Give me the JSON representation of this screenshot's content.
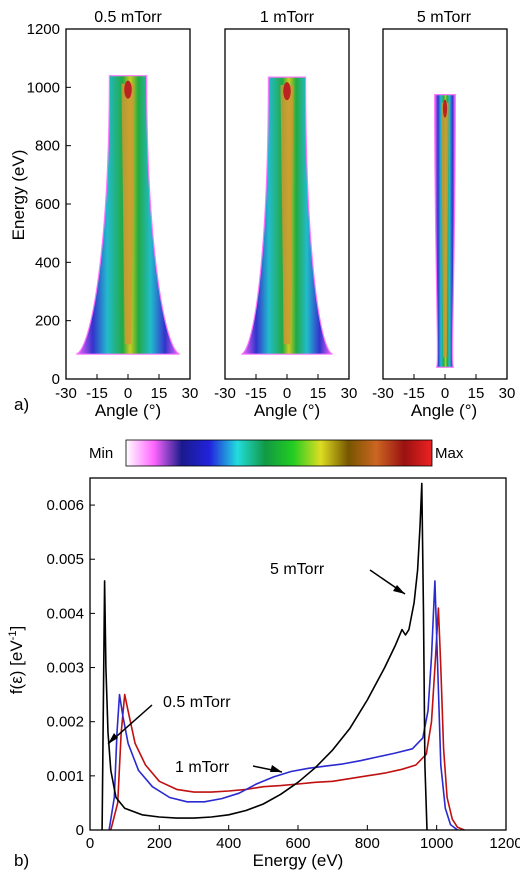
{
  "panel_a": {
    "letter": "a)",
    "ylabel": "Energy (eV)",
    "y_ticks": [
      "0",
      "200",
      "400",
      "600",
      "800",
      "1000",
      "1200"
    ],
    "x_ticks": [
      "-30",
      "-15",
      "0",
      "15",
      "30"
    ],
    "xlabel": "Angle (°)",
    "panels": [
      {
        "title": "0.5 mTorr",
        "emin": 85,
        "emax": 1040,
        "base_halfwidth": 25,
        "top_halfwidth": 9
      },
      {
        "title": "1 mTorr",
        "emin": 85,
        "emax": 1035,
        "base_halfwidth": 22,
        "top_halfwidth": 9
      },
      {
        "title": "5 mTorr",
        "emin": 40,
        "emax": 975,
        "base_halfwidth": 4,
        "top_halfwidth": 5
      }
    ]
  },
  "colorbar": {
    "min_label": "Min",
    "max_label": "Max",
    "colors": [
      "#ffffff",
      "#ff66ff",
      "#1a1a8c",
      "#2222dd",
      "#22dddd",
      "#119944",
      "#22cc22",
      "#dddd22",
      "#775500",
      "#cc6622",
      "#991111",
      "#ee2222"
    ]
  },
  "panel_b": {
    "letter": "b)",
    "ylabel": "f(ε) [eV⁻¹]",
    "ylabel_main": "f(ε) [eV",
    "ylabel_sup": "-1",
    "ylabel_end": "]",
    "xlabel": "Energy (eV)",
    "x_ticks": [
      "0",
      "200",
      "400",
      "600",
      "800",
      "1000",
      "1200"
    ],
    "y_ticks": [
      "0",
      "0.001",
      "0.002",
      "0.003",
      "0.004",
      "0.005",
      "0.006"
    ],
    "annotations": {
      "a05": "0.5 mTorr",
      "a1": "1 mTorr",
      "a5": "5 mTorr"
    }
  },
  "chart_data": [
    {
      "type": "heatmap",
      "title": "0.5 mTorr",
      "xlabel": "Angle (°)",
      "ylabel": "Energy (eV)",
      "xlim": [
        -30,
        30
      ],
      "ylim": [
        0,
        1200
      ],
      "x_ticks": [
        -30,
        -15,
        0,
        15,
        30
      ],
      "y_ticks": [
        0,
        200,
        400,
        600,
        800,
        1000,
        1200
      ],
      "energy_range": [
        85,
        1040
      ],
      "angular_halfwidth_at_min_energy": 25,
      "angular_halfwidth_at_max_energy": 9,
      "colorscale": [
        "Min",
        "Max"
      ]
    },
    {
      "type": "heatmap",
      "title": "1 mTorr",
      "xlabel": "Angle (°)",
      "xlim": [
        -30,
        30
      ],
      "ylim": [
        0,
        1200
      ],
      "x_ticks": [
        -30,
        -15,
        0,
        15,
        30
      ],
      "energy_range": [
        85,
        1035
      ],
      "angular_halfwidth_at_min_energy": 22,
      "angular_halfwidth_at_max_energy": 9,
      "colorscale": [
        "Min",
        "Max"
      ]
    },
    {
      "type": "heatmap",
      "title": "5 mTorr",
      "xlabel": "Angle (°)",
      "xlim": [
        -30,
        30
      ],
      "ylim": [
        0,
        1200
      ],
      "x_ticks": [
        -30,
        -15,
        0,
        15,
        30
      ],
      "energy_range": [
        40,
        975
      ],
      "angular_halfwidth_at_min_energy": 4,
      "angular_halfwidth_at_max_energy": 5,
      "colorscale": [
        "Min",
        "Max"
      ]
    },
    {
      "type": "line",
      "xlabel": "Energy (eV)",
      "ylabel": "f(ε) [eV⁻¹]",
      "xlim": [
        0,
        1200
      ],
      "ylim": [
        0,
        0.0065
      ],
      "x_ticks": [
        0,
        200,
        400,
        600,
        800,
        1000,
        1200
      ],
      "y_ticks": [
        0,
        0.001,
        0.002,
        0.003,
        0.004,
        0.005,
        0.006
      ],
      "series": [
        {
          "name": "0.5 mTorr",
          "color": "#c01010",
          "points": [
            [
              60,
              0
            ],
            [
              80,
              0.0005
            ],
            [
              90,
              0.0018
            ],
            [
              100,
              0.0025
            ],
            [
              110,
              0.0022
            ],
            [
              130,
              0.0016
            ],
            [
              160,
              0.0012
            ],
            [
              200,
              0.0009
            ],
            [
              250,
              0.00075
            ],
            [
              300,
              0.0007
            ],
            [
              350,
              0.0007
            ],
            [
              400,
              0.00072
            ],
            [
              450,
              0.00075
            ],
            [
              500,
              0.0008
            ],
            [
              550,
              0.00082
            ],
            [
              600,
              0.00085
            ],
            [
              650,
              0.00088
            ],
            [
              700,
              0.0009
            ],
            [
              750,
              0.00095
            ],
            [
              800,
              0.001
            ],
            [
              850,
              0.00105
            ],
            [
              900,
              0.00112
            ],
            [
              940,
              0.0012
            ],
            [
              970,
              0.0014
            ],
            [
              985,
              0.002
            ],
            [
              995,
              0.003
            ],
            [
              1005,
              0.0041
            ],
            [
              1012,
              0.003
            ],
            [
              1020,
              0.0015
            ],
            [
              1030,
              0.0006
            ],
            [
              1045,
              0.0002
            ],
            [
              1060,
              5e-05
            ],
            [
              1080,
              0
            ]
          ]
        },
        {
          "name": "1 mTorr",
          "color": "#2a2ad0",
          "points": [
            [
              55,
              0
            ],
            [
              70,
              0.0006
            ],
            [
              78,
              0.0018
            ],
            [
              85,
              0.0025
            ],
            [
              95,
              0.0021
            ],
            [
              110,
              0.0016
            ],
            [
              140,
              0.0011
            ],
            [
              180,
              0.0008
            ],
            [
              230,
              0.0006
            ],
            [
              280,
              0.00052
            ],
            [
              330,
              0.00052
            ],
            [
              380,
              0.00058
            ],
            [
              430,
              0.00068
            ],
            [
              480,
              0.00085
            ],
            [
              530,
              0.00098
            ],
            [
              580,
              0.00108
            ],
            [
              630,
              0.00114
            ],
            [
              680,
              0.00118
            ],
            [
              730,
              0.00122
            ],
            [
              780,
              0.00128
            ],
            [
              830,
              0.00135
            ],
            [
              880,
              0.00142
            ],
            [
              930,
              0.0015
            ],
            [
              960,
              0.0017
            ],
            [
              975,
              0.0022
            ],
            [
              985,
              0.0032
            ],
            [
              995,
              0.0046
            ],
            [
              1003,
              0.003
            ],
            [
              1012,
              0.0012
            ],
            [
              1025,
              0.0004
            ],
            [
              1040,
              0.0001
            ],
            [
              1060,
              0
            ]
          ]
        },
        {
          "name": "5 mTorr",
          "color": "#000000",
          "points": [
            [
              35,
              0
            ],
            [
              42,
              0.0046
            ],
            [
              46,
              0.003
            ],
            [
              52,
              0.0018
            ],
            [
              60,
              0.0011
            ],
            [
              75,
              0.0006
            ],
            [
              100,
              0.0004
            ],
            [
              150,
              0.00028
            ],
            [
              200,
              0.00024
            ],
            [
              250,
              0.00022
            ],
            [
              300,
              0.00022
            ],
            [
              350,
              0.00024
            ],
            [
              400,
              0.00028
            ],
            [
              450,
              0.00036
            ],
            [
              500,
              0.00048
            ],
            [
              550,
              0.00066
            ],
            [
              600,
              0.00088
            ],
            [
              650,
              0.00115
            ],
            [
              700,
              0.00148
            ],
            [
              750,
              0.00188
            ],
            [
              800,
              0.0024
            ],
            [
              850,
              0.003
            ],
            [
              880,
              0.0034
            ],
            [
              900,
              0.0037
            ],
            [
              910,
              0.0036
            ],
            [
              920,
              0.0037
            ],
            [
              935,
              0.0042
            ],
            [
              945,
              0.0048
            ],
            [
              952,
              0.0056
            ],
            [
              957,
              0.0064
            ],
            [
              962,
              0.004
            ],
            [
              966,
              0.0012
            ],
            [
              972,
              0
            ]
          ]
        }
      ]
    }
  ]
}
